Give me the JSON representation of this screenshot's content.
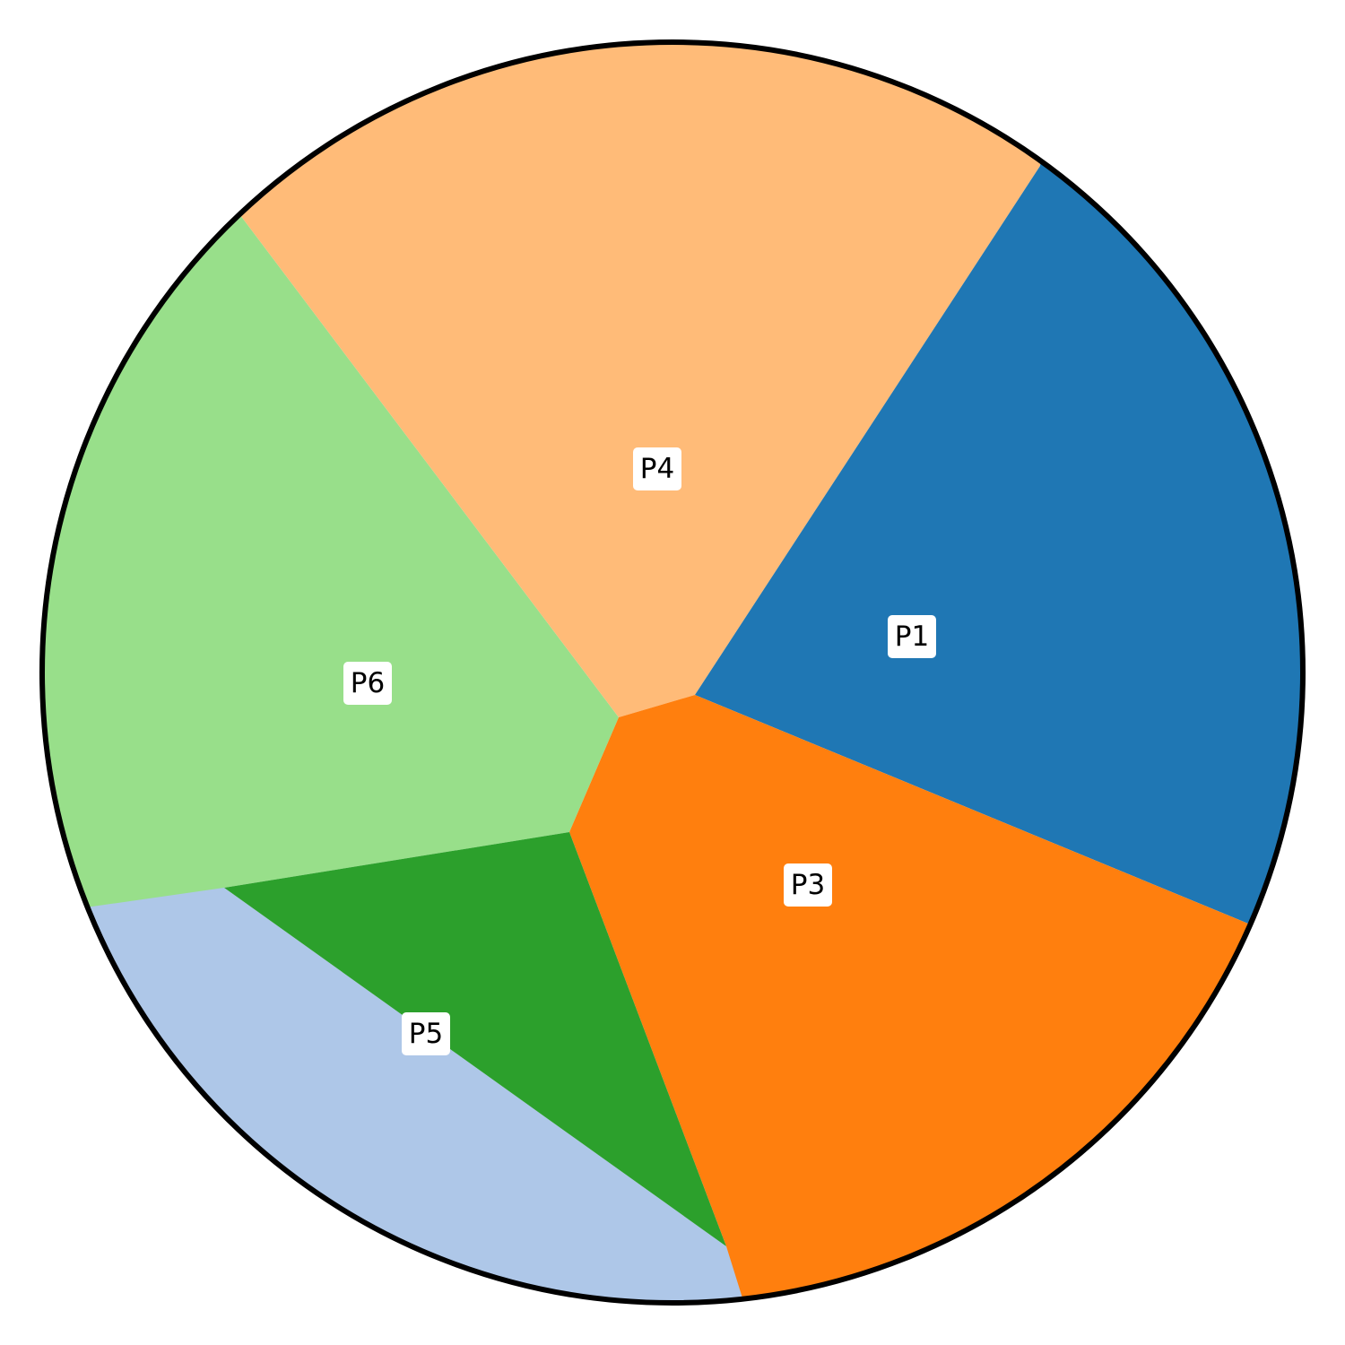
{
  "diagram": {
    "type": "voronoi-partition-in-circle",
    "outline_color": "#000000",
    "regions": [
      {
        "id": "P1",
        "label": "P1",
        "color": "#1f77b4"
      },
      {
        "id": "P3",
        "label": "P3",
        "color": "#ff7f0e"
      },
      {
        "id": "P4",
        "label": "P4",
        "color": "#ffbb78"
      },
      {
        "id": "P5",
        "label": "P5",
        "color": "#2ca02c"
      },
      {
        "id": "P6",
        "label": "P6",
        "color": "#98df8a"
      },
      {
        "id": "unlabeled",
        "label": "",
        "color": "#aec7e8"
      }
    ]
  }
}
